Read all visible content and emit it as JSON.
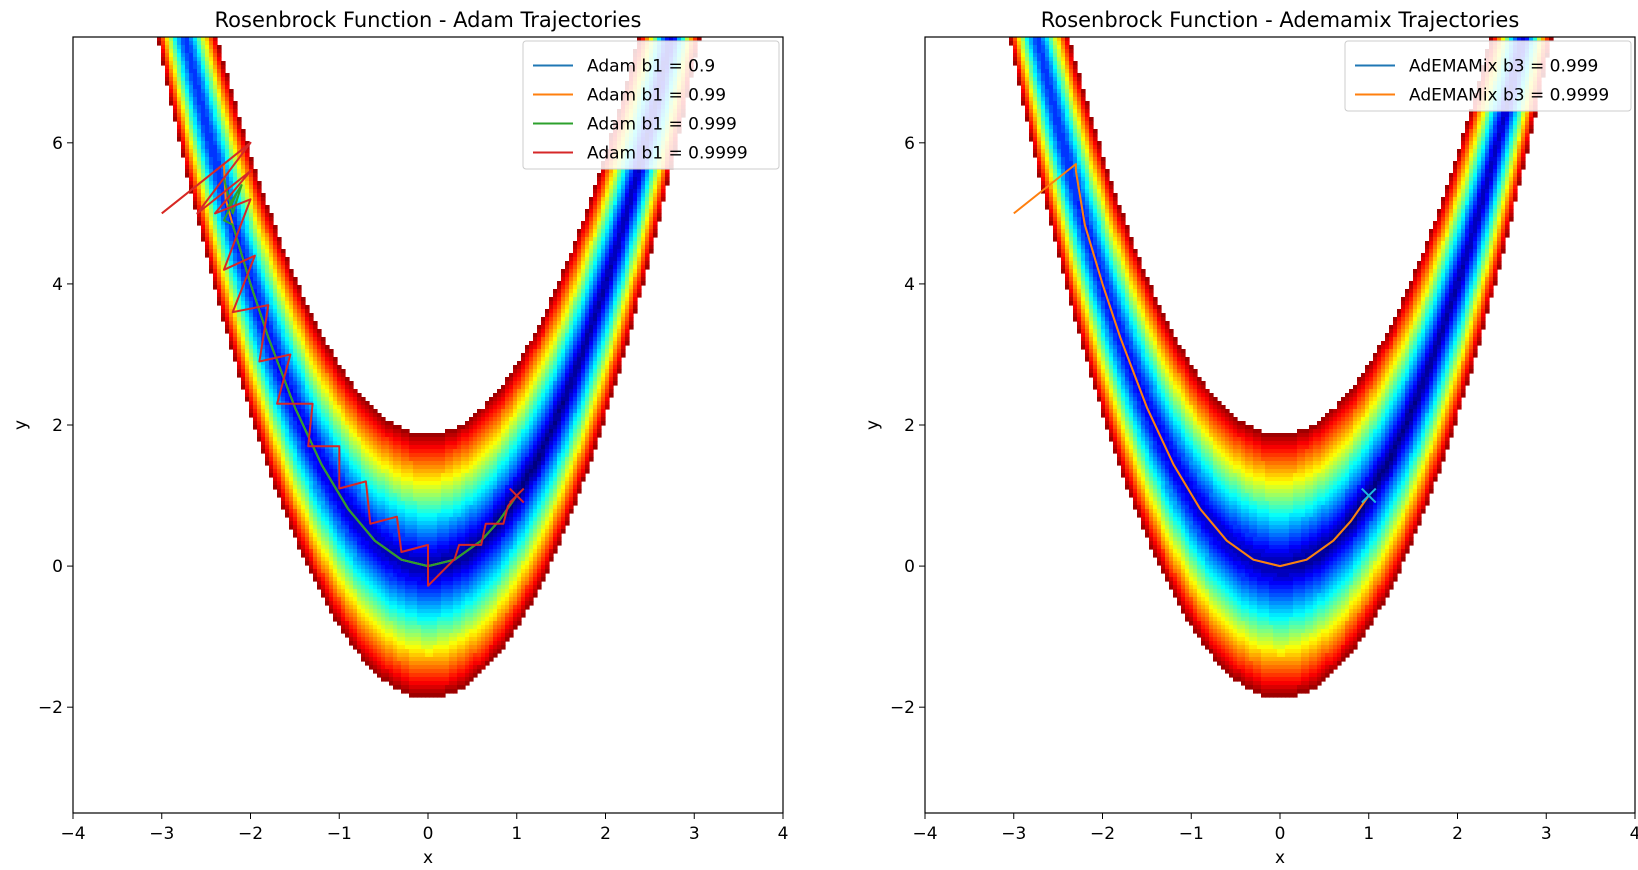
{
  "chart_data": [
    {
      "type": "line",
      "title": "Rosenbrock Function - Adam Trajectories",
      "xlabel": "x",
      "ylabel": "y",
      "xlim": [
        -4,
        4
      ],
      "ylim": [
        -3.5,
        7.5
      ],
      "xticks": [
        -4,
        -3,
        -2,
        -1,
        0,
        1,
        2,
        3,
        4
      ],
      "yticks": [
        -2,
        0,
        2,
        4,
        6
      ],
      "xtick_labels": [
        "−4",
        "−3",
        "−2",
        "−1",
        "0",
        "1",
        "2",
        "3",
        "4"
      ],
      "ytick_labels": [
        "−2",
        "0",
        "2",
        "4",
        "6"
      ],
      "grid": false,
      "legend_position": "top-right",
      "background": "rosenbrock-filled-contour-jet",
      "series": [
        {
          "name": "Adam b1 = 0.9",
          "color": "#1f77b4",
          "x": [
            -2.3,
            -2.28,
            -2.2,
            -2.0,
            -1.8,
            -1.5,
            -1.2,
            -0.9,
            -0.6,
            -0.3,
            0.0,
            0.3,
            0.6,
            0.8,
            1.0
          ],
          "y": [
            5.6,
            5.2,
            4.84,
            4.0,
            3.24,
            2.25,
            1.44,
            0.81,
            0.36,
            0.09,
            0.0,
            0.09,
            0.36,
            0.64,
            1.0
          ]
        },
        {
          "name": "Adam b1 = 0.99",
          "color": "#ff7f0e",
          "x": [
            -3.0,
            -2.3,
            -2.28,
            -2.2,
            -2.0,
            -1.8,
            -1.5,
            -1.2,
            -0.9,
            -0.6,
            -0.3,
            0.0,
            0.3,
            0.6,
            0.8,
            1.0
          ],
          "y": [
            5.0,
            5.7,
            5.2,
            4.84,
            4.0,
            3.24,
            2.25,
            1.44,
            0.81,
            0.36,
            0.09,
            0.0,
            0.09,
            0.36,
            0.64,
            1.0
          ]
        },
        {
          "name": "Adam b1 = 0.999",
          "color": "#2ca02c",
          "x": [
            -2.3,
            -2.2,
            -2.1,
            -2.25,
            -2.15,
            -2.3,
            -2.2,
            -2.0,
            -1.8,
            -1.5,
            -1.2,
            -0.9,
            -0.6,
            -0.3,
            0.0,
            0.3,
            0.6,
            0.8,
            1.0
          ],
          "y": [
            5.5,
            5.0,
            5.4,
            5.1,
            5.3,
            4.9,
            4.84,
            4.0,
            3.24,
            2.25,
            1.44,
            0.81,
            0.36,
            0.09,
            0.0,
            0.09,
            0.36,
            0.64,
            1.0
          ]
        },
        {
          "name": "Adam b1 = 0.9999",
          "color": "#d62728",
          "x": [
            -3.0,
            -2.0,
            -2.6,
            -2.0,
            -2.4,
            -2.0,
            -2.3,
            -1.95,
            -2.2,
            -1.8,
            -1.9,
            -1.55,
            -1.7,
            -1.3,
            -1.35,
            -1.0,
            -1.0,
            -0.7,
            -0.65,
            -0.35,
            -0.3,
            0.0,
            0.0,
            0.3,
            0.35,
            0.6,
            0.65,
            0.85,
            0.9,
            1.0
          ],
          "y": [
            5.0,
            6.0,
            5.0,
            5.6,
            5.0,
            5.2,
            4.2,
            4.4,
            3.6,
            3.7,
            2.9,
            3.0,
            2.3,
            2.3,
            1.7,
            1.7,
            1.1,
            1.2,
            0.6,
            0.7,
            0.2,
            0.3,
            -0.28,
            0.1,
            0.3,
            0.3,
            0.6,
            0.6,
            0.85,
            1.0
          ]
        }
      ]
    },
    {
      "type": "line",
      "title": "Rosenbrock Function - Ademamix Trajectories",
      "xlabel": "x",
      "ylabel": "y",
      "xlim": [
        -4,
        4
      ],
      "ylim": [
        -3.5,
        7.5
      ],
      "xticks": [
        -4,
        -3,
        -2,
        -1,
        0,
        1,
        2,
        3,
        4
      ],
      "yticks": [
        -2,
        0,
        2,
        4,
        6
      ],
      "xtick_labels": [
        "−4",
        "−3",
        "−2",
        "−1",
        "0",
        "1",
        "2",
        "3",
        "4"
      ],
      "ytick_labels": [
        "−2",
        "0",
        "2",
        "4",
        "6"
      ],
      "grid": false,
      "legend_position": "top-right",
      "background": "rosenbrock-filled-contour-jet",
      "series": [
        {
          "name": "AdEMAMix b3 = 0.999",
          "color": "#1f77b4",
          "x": [
            -2.3,
            -2.2,
            -2.0,
            -1.8,
            -1.5,
            -1.2,
            -0.9,
            -0.6,
            -0.3,
            0.0,
            0.3,
            0.6,
            0.8,
            1.0
          ],
          "y": [
            5.6,
            4.84,
            4.0,
            3.24,
            2.25,
            1.44,
            0.81,
            0.36,
            0.09,
            0.0,
            0.09,
            0.36,
            0.64,
            1.0
          ]
        },
        {
          "name": "AdEMAMix b3 = 0.9999",
          "color": "#ff7f0e",
          "x": [
            -3.0,
            -2.3,
            -2.3,
            -2.2,
            -2.0,
            -1.8,
            -1.5,
            -1.2,
            -0.9,
            -0.6,
            -0.3,
            0.0,
            0.3,
            0.6,
            0.8,
            1.0
          ],
          "y": [
            5.0,
            5.7,
            5.6,
            4.84,
            4.0,
            3.24,
            2.25,
            1.44,
            0.81,
            0.36,
            0.09,
            0.0,
            0.09,
            0.36,
            0.64,
            1.0
          ]
        }
      ]
    }
  ]
}
